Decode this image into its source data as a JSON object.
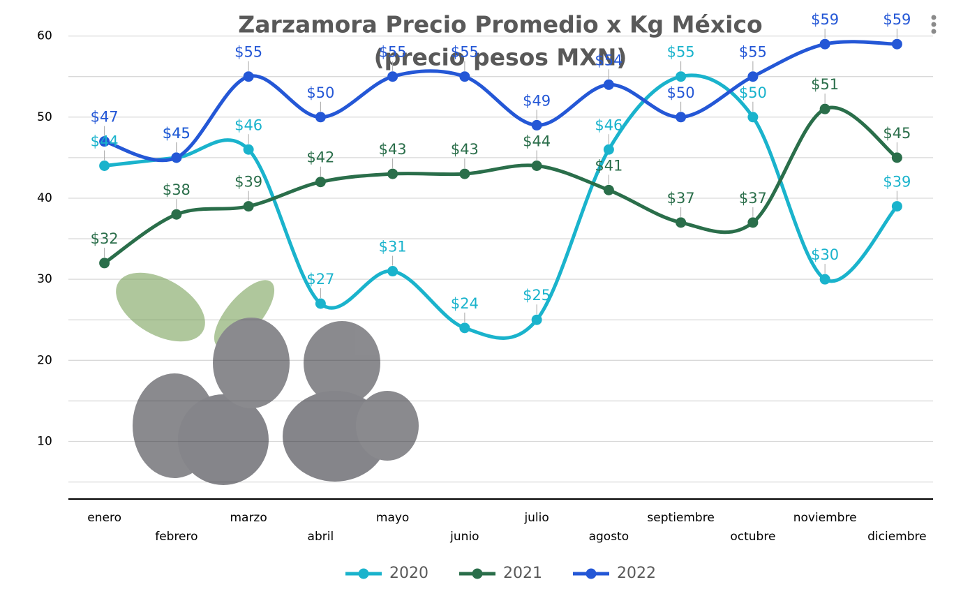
{
  "chart_data": {
    "type": "line",
    "title": "Zarzamora Precio Promedio x Kg México",
    "subtitle": "(precio pesos MXN)",
    "categories": [
      "enero",
      "febrero",
      "marzo",
      "abril",
      "mayo",
      "junio",
      "julio",
      "agosto",
      "septiembre",
      "octubre",
      "noviembre",
      "diciembre"
    ],
    "series": [
      {
        "name": "2020",
        "color": "#1ab3cc",
        "values": [
          44,
          45,
          46,
          27,
          31,
          24,
          25,
          46,
          55,
          50,
          30,
          39
        ],
        "value_labels": [
          "$44",
          "$45",
          "$46",
          "$27",
          "$31",
          "$24",
          "$25",
          "$46",
          "$55",
          "$50",
          "$30",
          "$39"
        ]
      },
      {
        "name": "2021",
        "color": "#2a6e4a",
        "values": [
          32,
          38,
          39,
          42,
          43,
          43,
          44,
          41,
          37,
          37,
          51,
          45
        ],
        "value_labels": [
          "$32",
          "$38",
          "$39",
          "$42",
          "$43",
          "$43",
          "$44",
          "$41",
          "$37",
          "$37",
          "$51",
          "$45"
        ]
      },
      {
        "name": "2022",
        "color": "#2457d6",
        "values": [
          47,
          45,
          55,
          50,
          55,
          55,
          49,
          54,
          50,
          55,
          59,
          59
        ],
        "value_labels": [
          "$47",
          "$45",
          "$55",
          "$50",
          "$55",
          "$55",
          "$49",
          "$54",
          "$50",
          "$55",
          "$59",
          "$59"
        ]
      }
    ],
    "ylim": [
      2.9,
      60
    ],
    "yticks": [
      10,
      20,
      30,
      40,
      50,
      60
    ],
    "minor_yticks": [
      5,
      15,
      25,
      35,
      45,
      55
    ],
    "grid": true,
    "smooth": true,
    "legend": "bottom"
  }
}
